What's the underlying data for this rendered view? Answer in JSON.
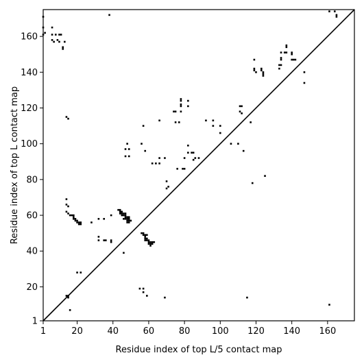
{
  "chart_data": {
    "type": "scatter",
    "xlabel": "Residue index of top L/5 contact map",
    "ylabel": "Residue index of top L contact map",
    "xlim": [
      1,
      175
    ],
    "ylim": [
      1,
      175
    ],
    "xticks": [
      1,
      20,
      40,
      60,
      80,
      100,
      120,
      140,
      160
    ],
    "yticks": [
      1,
      20,
      40,
      60,
      80,
      100,
      120,
      140,
      160
    ],
    "diagonal": true,
    "grid": false,
    "marker_color": "#000000",
    "upper_triangle_points": [
      [
        1,
        171
      ],
      [
        1,
        165
      ],
      [
        2,
        162
      ],
      [
        1,
        161
      ],
      [
        6,
        165
      ],
      [
        6,
        161
      ],
      [
        8,
        161
      ],
      [
        6,
        158
      ],
      [
        7,
        157
      ],
      [
        9,
        158
      ],
      [
        10,
        161
      ],
      [
        11,
        161
      ],
      [
        10,
        157
      ],
      [
        13,
        157
      ],
      [
        12,
        154
      ],
      [
        12,
        153
      ],
      [
        14,
        115
      ],
      [
        15,
        114
      ],
      [
        38,
        172
      ],
      [
        57,
        110
      ],
      [
        56,
        100
      ],
      [
        58,
        96
      ],
      [
        47,
        97
      ],
      [
        49,
        97
      ],
      [
        48,
        100
      ],
      [
        47,
        93
      ],
      [
        49,
        93
      ],
      [
        62,
        89
      ],
      [
        64,
        89
      ],
      [
        66,
        89
      ],
      [
        66,
        92
      ],
      [
        69,
        92
      ],
      [
        66,
        113
      ],
      [
        70,
        75
      ],
      [
        70,
        79
      ],
      [
        71,
        76
      ],
      [
        74,
        118
      ],
      [
        75,
        118
      ],
      [
        75,
        112
      ],
      [
        76,
        86
      ],
      [
        77,
        112
      ],
      [
        78,
        118
      ],
      [
        78,
        121
      ],
      [
        78,
        122
      ],
      [
        78,
        124
      ],
      [
        78,
        125
      ],
      [
        79,
        86
      ],
      [
        80,
        86
      ],
      [
        80,
        92
      ],
      [
        82,
        121
      ],
      [
        82,
        124
      ],
      [
        82,
        95
      ],
      [
        82,
        99
      ],
      [
        84,
        95
      ],
      [
        85,
        95
      ],
      [
        86,
        92
      ],
      [
        85,
        91
      ],
      [
        88,
        92
      ],
      [
        92,
        113
      ],
      [
        96,
        113
      ],
      [
        96,
        110
      ],
      [
        100,
        110
      ],
      [
        100,
        106
      ],
      [
        106,
        100
      ],
      [
        110,
        100
      ],
      [
        111,
        121
      ],
      [
        112,
        121
      ],
      [
        111,
        118
      ],
      [
        112,
        117
      ],
      [
        113,
        96
      ],
      [
        117,
        112
      ],
      [
        118,
        78
      ],
      [
        119,
        142
      ],
      [
        119,
        141
      ],
      [
        120,
        140
      ],
      [
        119,
        147
      ],
      [
        123,
        142
      ],
      [
        123,
        141
      ],
      [
        124,
        140
      ],
      [
        124,
        139
      ],
      [
        124,
        138
      ],
      [
        125,
        82
      ],
      [
        133,
        142
      ],
      [
        133,
        144
      ],
      [
        134,
        144
      ],
      [
        134,
        147
      ],
      [
        134,
        148
      ],
      [
        134,
        151
      ],
      [
        136,
        151
      ],
      [
        137,
        151
      ],
      [
        137,
        154
      ],
      [
        137,
        155
      ],
      [
        140,
        151
      ],
      [
        140,
        150
      ],
      [
        140,
        147
      ],
      [
        141,
        147
      ],
      [
        142,
        147
      ],
      [
        147,
        140
      ],
      [
        147,
        134
      ],
      [
        161,
        174
      ],
      [
        164,
        174
      ],
      [
        165,
        172
      ],
      [
        165,
        171
      ]
    ],
    "lower_triangle_points": [
      [
        14,
        15
      ],
      [
        15,
        15
      ],
      [
        15,
        14
      ],
      [
        16,
        7
      ],
      [
        14,
        69
      ],
      [
        14,
        66
      ],
      [
        15,
        65
      ],
      [
        14,
        62
      ],
      [
        15,
        61
      ],
      [
        16,
        60
      ],
      [
        17,
        60
      ],
      [
        18,
        60
      ],
      [
        18,
        59
      ],
      [
        18,
        58
      ],
      [
        19,
        58
      ],
      [
        19,
        57
      ],
      [
        20,
        57
      ],
      [
        20,
        56
      ],
      [
        21,
        56
      ],
      [
        21,
        55
      ],
      [
        22,
        56
      ],
      [
        22,
        55
      ],
      [
        20,
        28
      ],
      [
        22,
        28
      ],
      [
        28,
        56
      ],
      [
        32,
        58
      ],
      [
        32,
        48
      ],
      [
        32,
        46
      ],
      [
        35,
        58
      ],
      [
        35,
        46
      ],
      [
        36,
        46
      ],
      [
        39,
        60
      ],
      [
        39,
        46
      ],
      [
        39,
        45
      ],
      [
        43,
        63
      ],
      [
        44,
        63
      ],
      [
        44,
        62
      ],
      [
        44,
        61
      ],
      [
        45,
        62
      ],
      [
        45,
        61
      ],
      [
        45,
        60
      ],
      [
        46,
        61
      ],
      [
        46,
        60
      ],
      [
        47,
        61
      ],
      [
        47,
        60
      ],
      [
        47,
        59
      ],
      [
        48,
        59
      ],
      [
        48,
        58
      ],
      [
        48,
        57
      ],
      [
        48,
        56
      ],
      [
        49,
        59
      ],
      [
        49,
        58
      ],
      [
        49,
        57
      ],
      [
        49,
        56
      ],
      [
        50,
        57
      ],
      [
        46,
        58
      ],
      [
        47,
        58
      ],
      [
        46,
        39
      ],
      [
        55,
        19
      ],
      [
        57,
        19
      ],
      [
        57,
        17
      ],
      [
        59,
        15
      ],
      [
        56,
        50
      ],
      [
        57,
        50
      ],
      [
        57,
        49
      ],
      [
        58,
        49
      ],
      [
        58,
        48
      ],
      [
        59,
        49
      ],
      [
        58,
        47
      ],
      [
        58,
        46
      ],
      [
        59,
        47
      ],
      [
        59,
        46
      ],
      [
        60,
        46
      ],
      [
        60,
        45
      ],
      [
        60,
        44
      ],
      [
        61,
        45
      ],
      [
        61,
        44
      ],
      [
        61,
        43
      ],
      [
        62,
        45
      ],
      [
        62,
        44
      ],
      [
        63,
        45
      ],
      [
        69,
        14
      ],
      [
        115,
        14
      ],
      [
        161,
        10
      ]
    ]
  }
}
